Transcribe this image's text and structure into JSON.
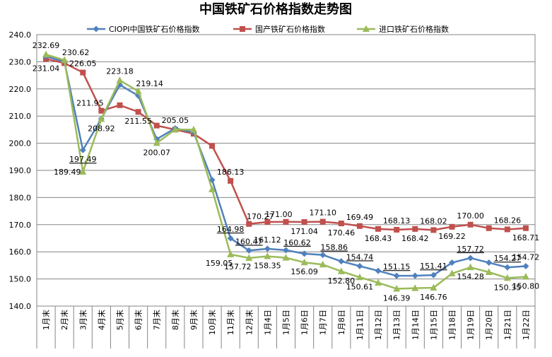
{
  "chart_data": {
    "type": "line",
    "title": "中国铁矿石价格指数走势图",
    "xlabel": "",
    "ylabel": "",
    "ylim": [
      140,
      240
    ],
    "yticks": [
      "140.0",
      "150.0",
      "160.0",
      "170.0",
      "180.0",
      "190.0",
      "200.0",
      "210.0",
      "220.0",
      "230.0",
      "240.0"
    ],
    "grid": true,
    "legend_position": "top",
    "categories": [
      "1月末",
      "2月末",
      "3月末",
      "4月末",
      "5月末",
      "6月末",
      "7月末",
      "8月末",
      "9月末",
      "10月末",
      "11月末",
      "12月末",
      "1月4日",
      "1月5日",
      "1月6日",
      "1月7日",
      "1月8日",
      "1月11日",
      "1月12日",
      "1月13日",
      "1月14日",
      "1月15日",
      "1月18日",
      "1月19日",
      "1月20日",
      "1月21日",
      "1月22日"
    ],
    "series": [
      {
        "name": "CIOPI中国铁矿石价格指数",
        "color": "#4F81BD",
        "marker": "diamond",
        "values": [
          232.0,
          230.0,
          197.49,
          209.0,
          221.5,
          217.5,
          201.5,
          205.5,
          204.0,
          186.5,
          164.98,
          160.47,
          161.12,
          160.62,
          159.3,
          158.86,
          156.5,
          154.74,
          153.0,
          151.15,
          151.2,
          151.41,
          156.0,
          157.72,
          156.0,
          154.27,
          154.72
        ]
      },
      {
        "name": "国产铁矿石价格指数",
        "color": "#C0504D",
        "marker": "square",
        "values": [
          231.04,
          229.5,
          226.05,
          211.95,
          214.0,
          211.55,
          206.5,
          205.0,
          203.5,
          199.0,
          186.13,
          170.27,
          171.0,
          171.04,
          171.0,
          171.1,
          170.46,
          169.49,
          168.43,
          168.13,
          168.42,
          168.02,
          169.22,
          170.0,
          168.7,
          168.26,
          168.71
        ]
      },
      {
        "name": "进口铁矿石价格指数",
        "color": "#9BBB59",
        "marker": "triangle",
        "values": [
          232.69,
          230.62,
          189.49,
          208.92,
          223.18,
          219.14,
          200.07,
          205.05,
          205.0,
          183.0,
          159.05,
          157.72,
          158.35,
          157.8,
          156.09,
          155.3,
          152.8,
          150.61,
          148.6,
          146.39,
          146.6,
          146.76,
          152.0,
          154.28,
          152.5,
          150.35,
          150.8
        ]
      }
    ],
    "data_labels": [
      {
        "text": "232.69",
        "series": 2,
        "index": 0,
        "pos": "above"
      },
      {
        "text": "231.04",
        "series": 1,
        "index": 0,
        "pos": "below"
      },
      {
        "text": "230.62",
        "series": 2,
        "index": 1,
        "pos": "above-right"
      },
      {
        "text": "226.05",
        "series": 1,
        "index": 2,
        "pos": "above"
      },
      {
        "text": "197.49",
        "series": 0,
        "index": 2,
        "pos": "below",
        "underline": true
      },
      {
        "text": "189.49",
        "series": 2,
        "index": 2,
        "pos": "left"
      },
      {
        "text": "211.95",
        "series": 1,
        "index": 3,
        "pos": "above-left"
      },
      {
        "text": "208.92",
        "series": 2,
        "index": 3,
        "pos": "below"
      },
      {
        "text": "223.18",
        "series": 2,
        "index": 4,
        "pos": "above"
      },
      {
        "text": "219.14",
        "series": 2,
        "index": 5,
        "pos": "above-right"
      },
      {
        "text": "211.55",
        "series": 1,
        "index": 5,
        "pos": "below"
      },
      {
        "text": "200.07",
        "series": 2,
        "index": 6,
        "pos": "below"
      },
      {
        "text": "205.05",
        "series": 2,
        "index": 7,
        "pos": "above"
      },
      {
        "text": "186.13",
        "series": 1,
        "index": 10,
        "pos": "above"
      },
      {
        "text": "164.98",
        "series": 0,
        "index": 10,
        "pos": "above",
        "underline": true
      },
      {
        "text": "159.05",
        "series": 2,
        "index": 10,
        "pos": "below-left"
      },
      {
        "text": "160.47",
        "series": 0,
        "index": 11,
        "pos": "above",
        "underline": true
      },
      {
        "text": "157.72",
        "series": 2,
        "index": 11,
        "pos": "below-left"
      },
      {
        "text": "170.27",
        "series": 1,
        "index": 11,
        "pos": "above-right"
      },
      {
        "text": "171.00",
        "series": 1,
        "index": 12,
        "pos": "above-right"
      },
      {
        "text": "161.12",
        "series": 0,
        "index": 12,
        "pos": "above"
      },
      {
        "text": "158.35",
        "series": 2,
        "index": 12,
        "pos": "below"
      },
      {
        "text": "160.62",
        "series": 0,
        "index": 13,
        "pos": "above-right",
        "underline": true
      },
      {
        "text": "171.04",
        "series": 1,
        "index": 14,
        "pos": "below"
      },
      {
        "text": "156.09",
        "series": 2,
        "index": 14,
        "pos": "below"
      },
      {
        "text": "171.10",
        "series": 1,
        "index": 15,
        "pos": "above"
      },
      {
        "text": "158.86",
        "series": 0,
        "index": 15,
        "pos": "above-right",
        "underline": true
      },
      {
        "text": "170.46",
        "series": 1,
        "index": 16,
        "pos": "below"
      },
      {
        "text": "152.80",
        "series": 2,
        "index": 16,
        "pos": "below"
      },
      {
        "text": "169.49",
        "series": 1,
        "index": 17,
        "pos": "above"
      },
      {
        "text": "154.74",
        "series": 0,
        "index": 17,
        "pos": "above",
        "underline": true
      },
      {
        "text": "150.61",
        "series": 2,
        "index": 17,
        "pos": "below"
      },
      {
        "text": "168.43",
        "series": 1,
        "index": 18,
        "pos": "below"
      },
      {
        "text": "168.13",
        "series": 1,
        "index": 19,
        "pos": "above"
      },
      {
        "text": "151.15",
        "series": 0,
        "index": 19,
        "pos": "above",
        "underline": true
      },
      {
        "text": "146.39",
        "series": 2,
        "index": 19,
        "pos": "below"
      },
      {
        "text": "168.42",
        "series": 1,
        "index": 20,
        "pos": "below"
      },
      {
        "text": "168.02",
        "series": 1,
        "index": 21,
        "pos": "above"
      },
      {
        "text": "151.41",
        "series": 0,
        "index": 21,
        "pos": "above",
        "underline": true
      },
      {
        "text": "146.76",
        "series": 2,
        "index": 21,
        "pos": "below"
      },
      {
        "text": "169.22",
        "series": 1,
        "index": 22,
        "pos": "below"
      },
      {
        "text": "170.00",
        "series": 1,
        "index": 23,
        "pos": "above"
      },
      {
        "text": "157.72",
        "series": 0,
        "index": 23,
        "pos": "above",
        "underline": true
      },
      {
        "text": "154.28",
        "series": 2,
        "index": 23,
        "pos": "below"
      },
      {
        "text": "168.26",
        "series": 1,
        "index": 25,
        "pos": "above"
      },
      {
        "text": "154.27",
        "series": 0,
        "index": 25,
        "pos": "above",
        "underline": true
      },
      {
        "text": "150.35",
        "series": 2,
        "index": 25,
        "pos": "below"
      },
      {
        "text": "168.71",
        "series": 1,
        "index": 26,
        "pos": "below"
      },
      {
        "text": "154.72",
        "series": 0,
        "index": 26,
        "pos": "above"
      },
      {
        "text": "150.80",
        "series": 2,
        "index": 26,
        "pos": "below"
      }
    ]
  }
}
